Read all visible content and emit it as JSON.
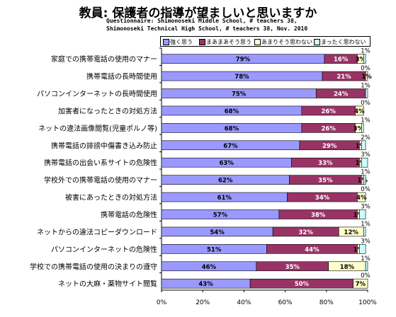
{
  "title": "教員: 保護者の指導が望ましいと思いますか",
  "subtitle_lines": [
    "Questionnaire: Shimonoseki Middle School, # teachers 38,",
    "Shimonoseki Technical High School, # teachers 38, Nov. 2010"
  ],
  "colors": {
    "strongly_agree": "#9999ff",
    "somewhat_agree": "#993366",
    "somewhat_disagree": "#ffffcc",
    "strongly_disagree": "#ccffff"
  },
  "legend": [
    "強く思う",
    "まあまあそう思う",
    "あまりそう思わない",
    "まったく思わない"
  ],
  "chart_data": {
    "type": "bar",
    "orientation": "horizontal",
    "stacked": true,
    "xlim": [
      0,
      100
    ],
    "x_ticks": [
      "0%",
      "20%",
      "40%",
      "60%",
      "80%",
      "100%"
    ],
    "grid": false,
    "legend_position": "top",
    "categories": [
      "家庭での携帯電話の使用のマナー",
      "携帯電話の長時間使用",
      "パソコンインターネットの長時間使用",
      "加害者になったときの対処方法",
      "ネットの違法画像閲覧(児童ポルノ等)",
      "携帯電話の誹謗中傷書き込み防止",
      "携帯電話の出会い系サイトの危険性",
      "学校外での携帯電話の使用のマナー",
      "被害にあったときの対処方法",
      "携帯電話の危険性",
      "ネットからの違法コピーダウンロード",
      "パソコンインターネットの危険性",
      "学校での携帯電話の使用の決まりの遵守",
      "ネットの大麻・薬物サイト閲覧"
    ],
    "series": [
      {
        "name": "強く思う",
        "values": [
          79,
          78,
          75,
          68,
          68,
          67,
          63,
          62,
          61,
          57,
          54,
          51,
          46,
          43
        ]
      },
      {
        "name": "まあまあそう思う",
        "values": [
          16,
          21,
          24,
          26,
          26,
          29,
          33,
          35,
          34,
          38,
          32,
          44,
          35,
          50
        ]
      },
      {
        "name": "あまりそう思わない",
        "values": [
          3,
          1,
          0,
          4,
          3,
          1,
          1,
          1,
          4,
          1,
          12,
          1,
          18,
          7
        ]
      },
      {
        "name": "まったく思わない",
        "values": [
          1,
          0,
          1,
          0,
          1,
          2,
          3,
          1,
          0,
          3,
          1,
          3,
          1,
          0
        ]
      }
    ],
    "label_above_values": [
      1,
      0,
      1,
      0,
      1,
      2,
      3,
      1,
      0,
      3,
      1,
      3,
      1,
      0
    ]
  }
}
